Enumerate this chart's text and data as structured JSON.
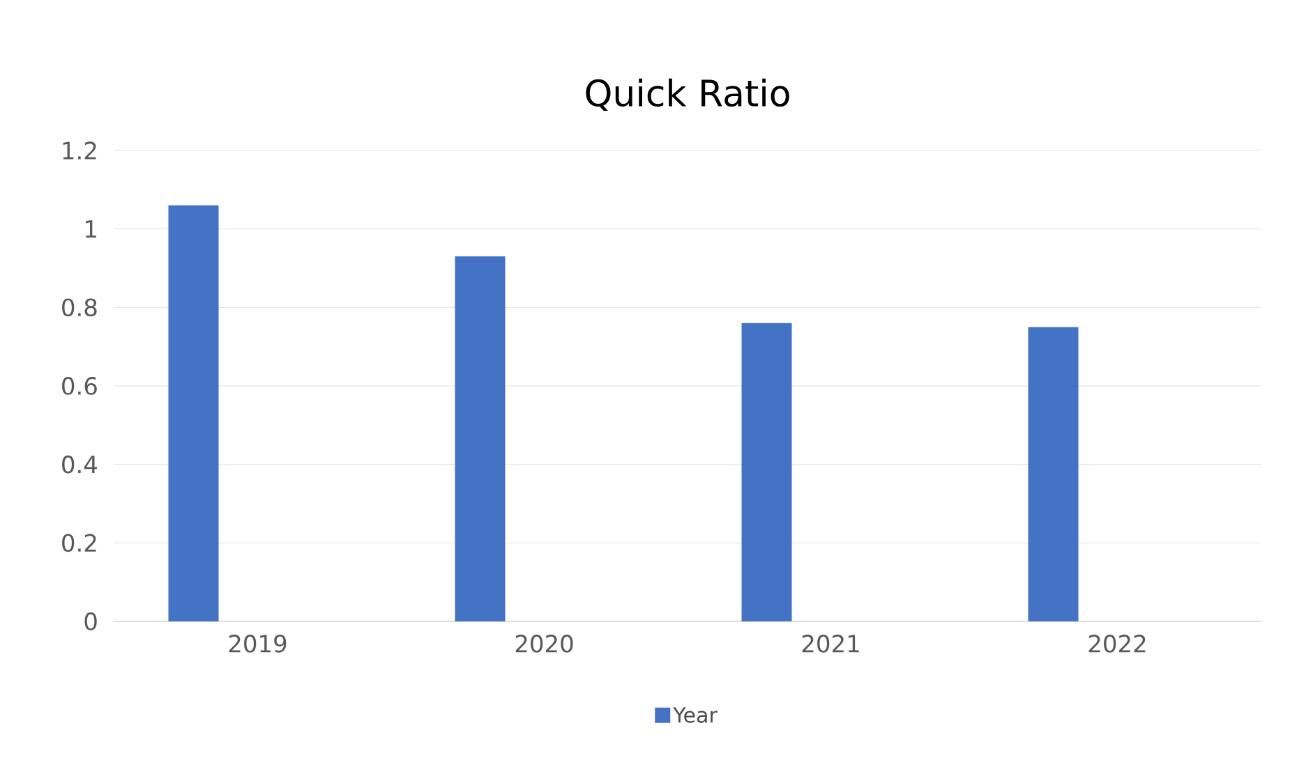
{
  "chart_data": {
    "type": "bar",
    "title": "Quick Ratio",
    "categories": [
      "2019",
      "2020",
      "2021",
      "2022"
    ],
    "series": [
      {
        "name": "Year",
        "color": "#4472c4",
        "values": [
          1.06,
          0.93,
          0.76,
          0.75
        ]
      }
    ],
    "ylim": [
      0,
      1.2
    ],
    "yticks": [
      0,
      0.2,
      0.4,
      0.6,
      0.8,
      1,
      1.2
    ],
    "grid": "y",
    "legend": "bottom"
  }
}
